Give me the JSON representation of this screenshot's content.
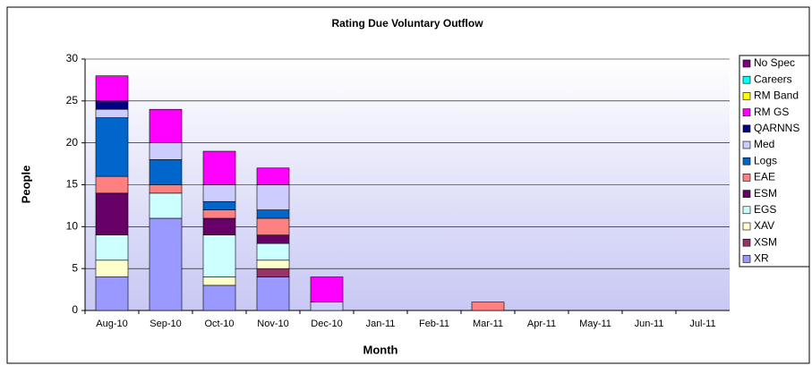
{
  "chart_data": {
    "type": "stacked_bar",
    "title": "Rating Due Voluntary Outflow",
    "xlabel": "Month",
    "ylabel": "People",
    "categories": [
      "Aug-10",
      "Sep-10",
      "Oct-10",
      "Nov-10",
      "Dec-10",
      "Jan-11",
      "Feb-11",
      "Mar-11",
      "Apr-11",
      "May-11",
      "Jun-11",
      "Jul-11"
    ],
    "series": [
      {
        "name": "XR",
        "color": "#9999FF",
        "values": [
          4,
          11,
          3,
          4,
          0,
          0,
          0,
          0,
          0,
          0,
          0,
          0
        ]
      },
      {
        "name": "XSM",
        "color": "#993366",
        "values": [
          0,
          0,
          0,
          1,
          0,
          0,
          0,
          0,
          0,
          0,
          0,
          0
        ]
      },
      {
        "name": "XAV",
        "color": "#FFFFCC",
        "values": [
          2,
          0,
          1,
          1,
          0,
          0,
          0,
          0,
          0,
          0,
          0,
          0
        ]
      },
      {
        "name": "EGS",
        "color": "#CCFFFF",
        "values": [
          3,
          3,
          5,
          2,
          0,
          0,
          0,
          0,
          0,
          0,
          0,
          0
        ]
      },
      {
        "name": "ESM",
        "color": "#660066",
        "values": [
          5,
          0,
          2,
          1,
          0,
          0,
          0,
          0,
          0,
          0,
          0,
          0
        ]
      },
      {
        "name": "EAE",
        "color": "#FF8080",
        "values": [
          2,
          1,
          1,
          2,
          0,
          0,
          0,
          1,
          0,
          0,
          0,
          0
        ]
      },
      {
        "name": "Logs",
        "color": "#0066CC",
        "values": [
          7,
          3,
          1,
          1,
          0,
          0,
          0,
          0,
          0,
          0,
          0,
          0
        ]
      },
      {
        "name": "Med",
        "color": "#CCCCFF",
        "values": [
          1,
          2,
          2,
          3,
          1,
          0,
          0,
          0,
          0,
          0,
          0,
          0
        ]
      },
      {
        "name": "QARNNS",
        "color": "#000080",
        "values": [
          1,
          0,
          0,
          0,
          0,
          0,
          0,
          0,
          0,
          0,
          0,
          0
        ]
      },
      {
        "name": "RM GS",
        "color": "#FF00FF",
        "values": [
          3,
          4,
          4,
          2,
          3,
          0,
          0,
          0,
          0,
          0,
          0,
          0
        ]
      },
      {
        "name": "RM Band",
        "color": "#FFFF00",
        "values": [
          0,
          0,
          0,
          0,
          0,
          0,
          0,
          0,
          0,
          0,
          0,
          0
        ]
      },
      {
        "name": "Careers",
        "color": "#00FFFF",
        "values": [
          0,
          0,
          0,
          0,
          0,
          0,
          0,
          0,
          0,
          0,
          0,
          0
        ]
      },
      {
        "name": "No Spec",
        "color": "#800080",
        "values": [
          0,
          0,
          0,
          0,
          0,
          0,
          0,
          0,
          0,
          0,
          0,
          0
        ]
      }
    ],
    "ylim": [
      0,
      30
    ],
    "yticks": [
      0,
      5,
      10,
      15,
      20,
      25,
      30
    ],
    "grid": true,
    "legend": "right"
  }
}
